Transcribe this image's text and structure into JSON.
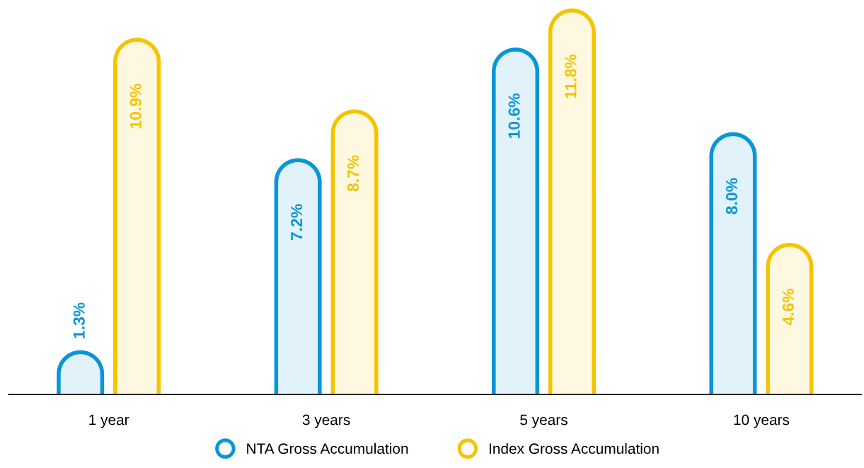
{
  "chart_data": {
    "type": "bar",
    "categories": [
      "1 year",
      "3 years",
      "5 years",
      "10 years"
    ],
    "series": [
      {
        "name": "NTA Gross Accumulation",
        "color": "#0a96d6",
        "values": [
          1.3,
          7.2,
          10.6,
          8.0
        ],
        "value_labels": [
          "1.3%",
          "7.2%",
          "10.6%",
          "8.0%"
        ]
      },
      {
        "name": "Index Gross Accumulation",
        "color": "#f5c400",
        "values": [
          10.9,
          8.7,
          11.8,
          4.6
        ],
        "value_labels": [
          "10.9%",
          "8.7%",
          "11.8%",
          "4.6%"
        ]
      }
    ],
    "legend": "bottom",
    "grid": false
  }
}
